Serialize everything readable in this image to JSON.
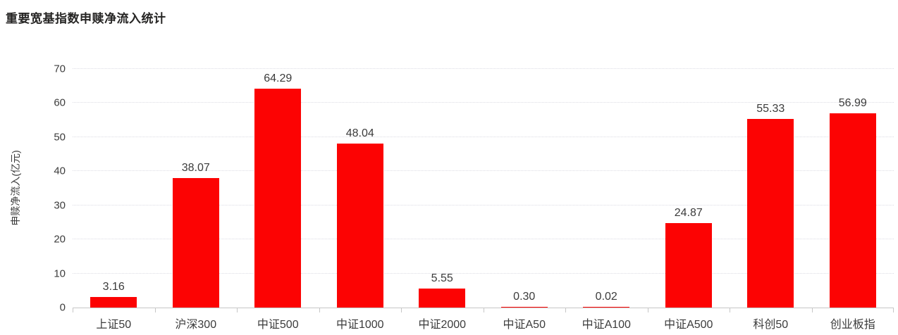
{
  "chart_data": {
    "type": "bar",
    "title": "重要宽基指数申赎净流入统计",
    "categories": [
      "上证50",
      "沪深300",
      "中证500",
      "中证1000",
      "中证2000",
      "中证A50",
      "中证A100",
      "中证A500",
      "科创50",
      "创业板指"
    ],
    "values": [
      3.16,
      38.07,
      64.29,
      48.04,
      5.55,
      0.3,
      0.02,
      24.87,
      55.33,
      56.99
    ],
    "value_labels": [
      "3.16",
      "38.07",
      "64.29",
      "48.04",
      "5.55",
      "0.30",
      "0.02",
      "24.87",
      "55.33",
      "56.99"
    ],
    "xlabel": "",
    "ylabel": "申赎净流入(亿元)",
    "ylim": [
      0,
      70
    ],
    "yticks": [
      0,
      10,
      20,
      30,
      40,
      50,
      60,
      70
    ],
    "grid": "horizontal-dotted",
    "legend_position": "none",
    "colors": {
      "bar": "#fc0303",
      "gridline": "#dcdce4",
      "axis_line": "#c6c6c6",
      "tick_label": "#3d3d3d",
      "data_label": "#3b3b3b",
      "title": "#252423",
      "background": "#ffffff"
    }
  }
}
